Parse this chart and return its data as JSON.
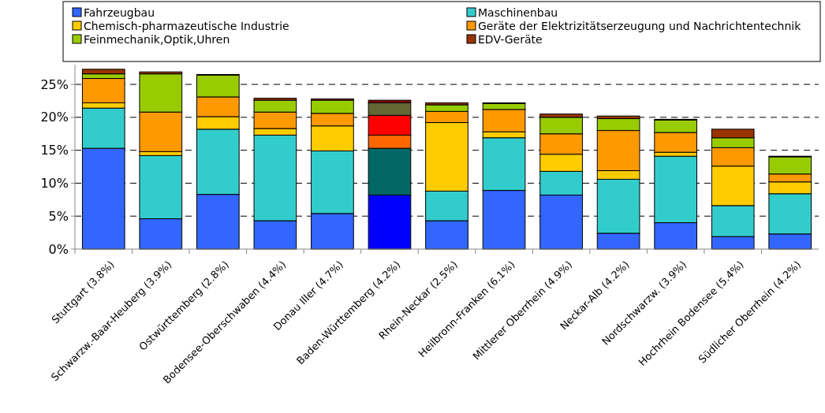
{
  "chart_data": {
    "type": "bar",
    "stacked": true,
    "legend": "top",
    "grid": "y",
    "categories": [
      "Stuttgart (3.8%)",
      "Schwarzw.-Baar-Heuberg (3.9%)",
      "Ostwürttemberg (2.8%)",
      "Bodensee-Oberschwaben (4.4%)",
      "Donau Iller (4.7%)",
      "Baden-Württemberg (4.2%)",
      "Rhein-Neckar (2.5%)",
      "Heilbronn-Franken (6.1%)",
      "Mittlerer Oberrhein (4.9%)",
      "Neckar-Alb (4.2%)",
      "Nordschwarzw. (3.9%)",
      "Hochrhein  Bodensee (5.4%)",
      "Südlicher Oberrhein (4.2%)"
    ],
    "ylim": [
      0,
      28
    ],
    "yticks": [
      {
        "value": 0,
        "label": "0%"
      },
      {
        "value": 5,
        "label": "5%"
      },
      {
        "value": 10,
        "label": "10%"
      },
      {
        "value": 15,
        "label": "15%"
      },
      {
        "value": 20,
        "label": "20%"
      },
      {
        "value": 25,
        "label": "25%"
      }
    ],
    "series": [
      {
        "name": "Fahrzeugbau",
        "color": "#3366ff",
        "colors": [
          "#3366ff",
          "#3366ff",
          "#3366ff",
          "#3366ff",
          "#3366ff",
          "#0000ff",
          "#3366ff",
          "#3366ff",
          "#3366ff",
          "#3366ff",
          "#3366ff",
          "#3366ff",
          "#3366ff"
        ],
        "values": [
          15.3,
          4.6,
          8.3,
          4.3,
          5.4,
          8.2,
          4.3,
          8.9,
          8.2,
          2.4,
          4.0,
          1.9,
          2.3
        ]
      },
      {
        "name": "Maschinenbau",
        "color": "#33cccc",
        "colors": [
          "#33cccc",
          "#33cccc",
          "#33cccc",
          "#33cccc",
          "#33cccc",
          "#006666",
          "#33cccc",
          "#33cccc",
          "#33cccc",
          "#33cccc",
          "#33cccc",
          "#33cccc",
          "#33cccc"
        ],
        "values": [
          6.1,
          9.6,
          9.9,
          13.0,
          9.5,
          7.1,
          4.5,
          8.0,
          3.6,
          8.2,
          10.1,
          4.7,
          6.1
        ]
      },
      {
        "name": "Chemisch-pharmazeutische Industrie",
        "color": "#ffcc00",
        "colors": [
          "#ffcc00",
          "#ffcc00",
          "#ffcc00",
          "#ffcc00",
          "#ffcc00",
          "#ff6600",
          "#ffcc00",
          "#ffcc00",
          "#ffcc00",
          "#ffcc00",
          "#ffcc00",
          "#ffcc00",
          "#ffcc00"
        ],
        "values": [
          0.8,
          0.6,
          1.9,
          1.0,
          3.8,
          2.0,
          10.4,
          0.9,
          2.6,
          1.3,
          0.6,
          6.0,
          1.8
        ]
      },
      {
        "name": "Geräte der Elektrizitätserzeugung und Nachrichtentechnik",
        "color": "#ff9900",
        "colors": [
          "#ff9900",
          "#ff9900",
          "#ff9900",
          "#ff9900",
          "#ff9900",
          "#ff0000",
          "#ff9900",
          "#ff9900",
          "#ff9900",
          "#ff9900",
          "#ff9900",
          "#ff9900",
          "#ff9900"
        ],
        "values": [
          3.7,
          6.0,
          3.0,
          2.5,
          1.9,
          3.0,
          1.7,
          3.4,
          3.1,
          6.1,
          3.0,
          2.8,
          1.2
        ]
      },
      {
        "name": "Feinmechanik,Optik,Uhren",
        "color": "#99cc00",
        "colors": [
          "#99cc00",
          "#99cc00",
          "#99cc00",
          "#99cc00",
          "#99cc00",
          "#666633",
          "#99cc00",
          "#99cc00",
          "#99cc00",
          "#99cc00",
          "#99cc00",
          "#99cc00",
          "#99cc00"
        ],
        "values": [
          0.7,
          5.8,
          3.3,
          1.8,
          2.0,
          1.9,
          1.0,
          0.9,
          2.5,
          1.8,
          1.9,
          1.5,
          2.6
        ]
      },
      {
        "name": "EDV-Geräte",
        "color": "#993300",
        "colors": [
          "#993300",
          "#993300",
          "#993300",
          "#993300",
          "#993300",
          "#800000",
          "#993300",
          "#993300",
          "#993300",
          "#993300",
          "#993300",
          "#993300",
          "#993300"
        ],
        "values": [
          0.7,
          0.3,
          0.1,
          0.3,
          0.2,
          0.4,
          0.3,
          0.1,
          0.5,
          0.4,
          0.1,
          1.3,
          0.1
        ]
      }
    ]
  }
}
